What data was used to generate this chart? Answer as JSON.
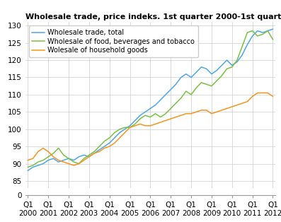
{
  "title": "Wholesale trade, price indeks. 1st quarter 2000-1st quarter 2012",
  "colors": {
    "total": "#4da6e8",
    "food": "#7ac141",
    "household": "#f7941d"
  },
  "legend_labels": [
    "Wholesale trade, total",
    "Wholesale of food, beverages and tobacco",
    "Wolesale of household goods"
  ],
  "x_labels": [
    "Q1\n2000",
    "Q1\n2001",
    "Q1\n2002",
    "Q1\n2003",
    "Q1\n2004",
    "Q1\n2005",
    "Q1\n2006",
    "Q1\n2007",
    "Q1\n2008",
    "Q1\n2009",
    "Q1\n2010",
    "Q1\n2011",
    "Q1\n2012"
  ],
  "total": [
    88.0,
    89.0,
    89.5,
    90.0,
    91.0,
    91.5,
    90.5,
    91.0,
    91.5,
    91.0,
    92.0,
    92.5,
    92.0,
    93.0,
    94.0,
    95.0,
    96.0,
    97.5,
    99.0,
    100.0,
    101.0,
    102.5,
    104.0,
    105.0,
    106.0,
    107.0,
    108.5,
    110.0,
    111.5,
    113.0,
    115.0,
    116.0,
    115.0,
    116.5,
    118.0,
    117.5,
    116.0,
    117.0,
    118.5,
    120.0,
    118.5,
    119.5,
    121.5,
    124.5,
    127.0,
    128.5,
    128.0,
    128.5,
    129.0
  ],
  "food": [
    89.0,
    89.5,
    90.5,
    91.0,
    92.0,
    93.0,
    94.5,
    92.5,
    91.5,
    90.5,
    90.0,
    91.5,
    92.5,
    93.5,
    95.0,
    96.5,
    97.5,
    99.0,
    100.0,
    100.5,
    100.5,
    101.5,
    103.0,
    104.0,
    103.5,
    104.5,
    103.5,
    104.5,
    106.0,
    107.5,
    109.0,
    111.0,
    110.0,
    112.0,
    113.5,
    113.0,
    112.5,
    114.0,
    115.5,
    117.5,
    118.0,
    120.0,
    124.0,
    128.0,
    128.5,
    127.0,
    127.5,
    128.5,
    126.0
  ],
  "household": [
    91.0,
    91.5,
    93.5,
    94.5,
    93.5,
    92.0,
    91.0,
    90.5,
    90.0,
    89.5,
    90.0,
    91.0,
    92.0,
    93.0,
    93.5,
    94.5,
    95.0,
    96.0,
    97.5,
    99.0,
    100.5,
    101.0,
    101.5,
    101.0,
    101.0,
    101.5,
    102.0,
    102.5,
    103.0,
    103.5,
    104.0,
    104.5,
    104.5,
    105.0,
    105.5,
    105.5,
    104.5,
    105.0,
    105.5,
    106.0,
    106.5,
    107.0,
    107.5,
    108.0,
    109.5,
    110.5,
    110.5,
    110.5,
    109.5
  ],
  "yticks_main": [
    85,
    90,
    95,
    100,
    105,
    110,
    115,
    120,
    125,
    130
  ],
  "ylim_main": [
    83,
    131
  ],
  "grid_color": "#cccccc",
  "title_fontsize": 8,
  "axis_fontsize": 7.5,
  "legend_fontsize": 7
}
